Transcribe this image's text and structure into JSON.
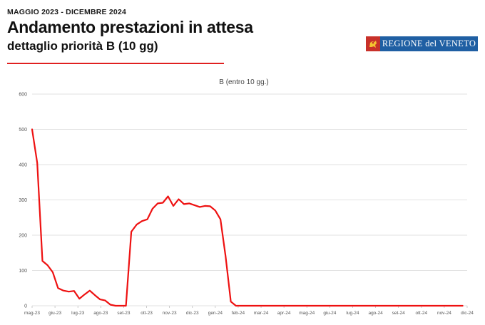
{
  "header": {
    "kicker": "MAGGIO 2023 - DICEMBRE 2024",
    "title": "Andamento prestazioni in attesa",
    "subtitle": "dettaglio priorità B (10 gg)"
  },
  "logo": {
    "text": "REGIONE del VENETO",
    "icon": "lion-of-st-mark-emblem"
  },
  "colors": {
    "series": "#ee1111",
    "rule": "#e02020",
    "logo_bg": "#1f5fa3",
    "grid": "#d9d9d9"
  },
  "chart_data": {
    "type": "line",
    "title": "B (entro 10 gg.)",
    "xlabel": "",
    "ylabel": "",
    "ylim": [
      0,
      600
    ],
    "yticks": [
      0,
      100,
      200,
      300,
      400,
      500,
      600
    ],
    "grid": true,
    "legend": "none",
    "categories": [
      "mag-23",
      "giu-23",
      "lug-23",
      "ago-23",
      "set-23",
      "ott-23",
      "nov-23",
      "dic-23",
      "gen-24",
      "feb-24",
      "mar-24",
      "apr-24",
      "mag-24",
      "giu-24",
      "lug-24",
      "ago-24",
      "set-24",
      "ott-24",
      "nov-24",
      "dic-24"
    ],
    "series": [
      {
        "x": [
          "2023-05-01",
          "2023-05-08",
          "2023-05-15",
          "2023-05-22",
          "2023-05-29",
          "2023-06-05",
          "2023-06-12",
          "2023-06-19",
          "2023-06-26",
          "2023-07-03",
          "2023-07-10",
          "2023-07-17",
          "2023-07-24",
          "2023-07-31",
          "2023-08-07",
          "2023-08-14",
          "2023-08-21",
          "2023-08-28",
          "2023-09-04",
          "2023-09-11",
          "2023-09-18",
          "2023-09-25",
          "2023-10-02",
          "2023-10-09",
          "2023-10-16",
          "2023-10-23",
          "2023-10-30",
          "2023-11-06",
          "2023-11-13",
          "2023-11-20",
          "2023-11-27",
          "2023-12-04",
          "2023-12-11",
          "2023-12-18",
          "2023-12-25",
          "2024-01-01",
          "2024-01-08",
          "2024-01-15",
          "2024-01-22",
          "2024-01-29",
          "2024-02-05",
          "2024-02-12",
          "2024-03-01",
          "2024-04-01",
          "2024-05-01",
          "2024-06-01",
          "2024-07-01",
          "2024-08-01",
          "2024-09-01",
          "2024-10-01",
          "2024-11-01",
          "2024-11-25"
        ],
        "values": [
          500,
          405,
          127,
          115,
          95,
          50,
          43,
          40,
          42,
          20,
          32,
          43,
          30,
          18,
          15,
          3,
          0,
          0,
          0,
          210,
          230,
          240,
          245,
          275,
          290,
          292,
          310,
          283,
          302,
          288,
          290,
          285,
          280,
          283,
          282,
          270,
          245,
          140,
          12,
          0,
          0,
          0,
          0,
          0,
          0,
          0,
          0,
          0,
          0,
          0,
          0,
          0
        ]
      }
    ]
  }
}
